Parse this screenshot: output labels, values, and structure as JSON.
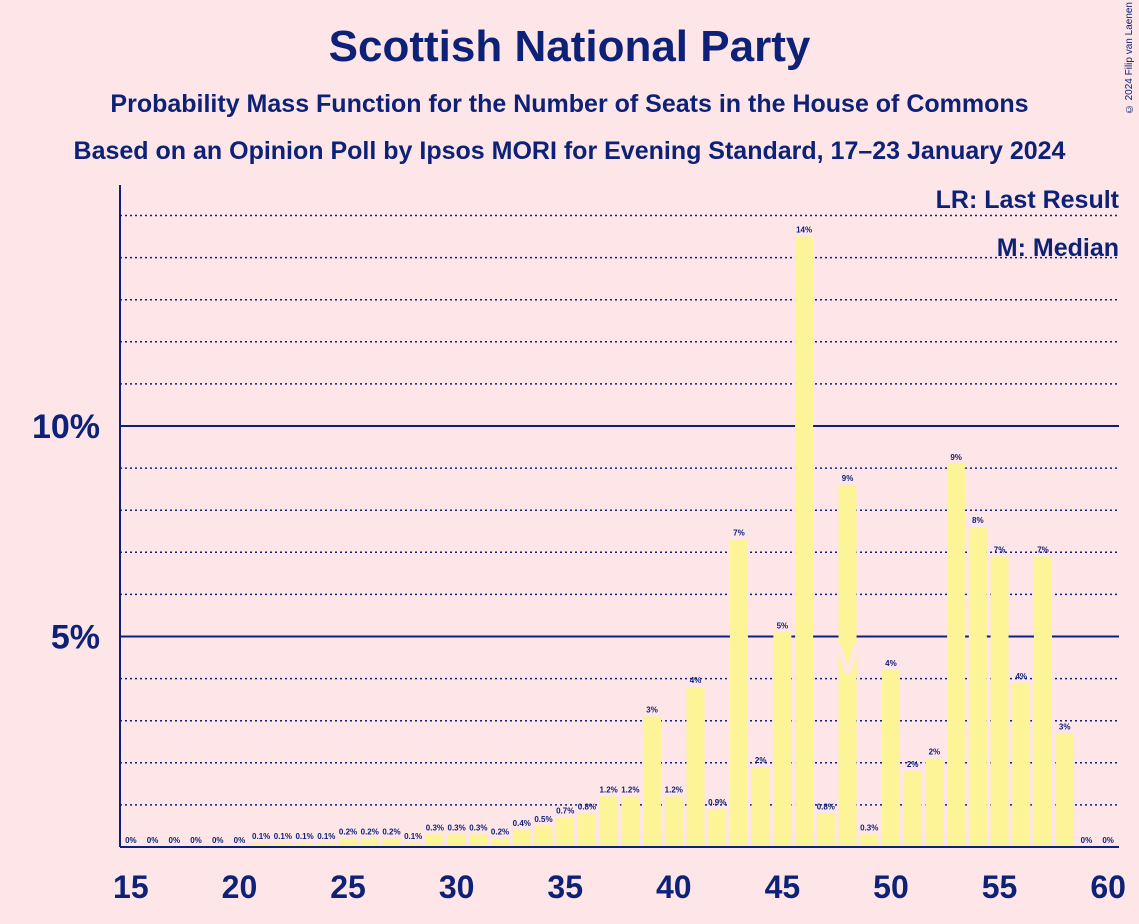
{
  "title": "Scottish National Party",
  "subtitle1": "Probability Mass Function for the Number of Seats in the House of Commons",
  "subtitle2": "Based on an Opinion Poll by Ipsos MORI for Evening Standard, 17–23 January 2024",
  "copyright": "© 2024 Filip van Laenen",
  "legend": {
    "last_result": "LR: Last Result",
    "median": "M: Median"
  },
  "colors": {
    "background": "#fde5e8",
    "bar": "#fdf497",
    "text": "#0d2277"
  },
  "chart_data": {
    "type": "bar",
    "title": "Scottish National Party",
    "xlabel": "",
    "ylabel": "",
    "x_ticks": [
      15,
      20,
      25,
      30,
      35,
      40,
      45,
      50,
      55,
      60
    ],
    "y_ticks": [
      {
        "value": 5,
        "label": "5%"
      },
      {
        "value": 10,
        "label": "10%"
      }
    ],
    "ylim": [
      0,
      15.8
    ],
    "xlim": [
      14.5,
      60.5
    ],
    "grid": true,
    "median_seat": 48,
    "median_marker": "M",
    "points": [
      {
        "x": 15,
        "y": 0,
        "label": "0%"
      },
      {
        "x": 16,
        "y": 0,
        "label": "0%"
      },
      {
        "x": 17,
        "y": 0,
        "label": "0%"
      },
      {
        "x": 18,
        "y": 0,
        "label": "0%"
      },
      {
        "x": 19,
        "y": 0,
        "label": "0%"
      },
      {
        "x": 20,
        "y": 0,
        "label": "0%"
      },
      {
        "x": 21,
        "y": 0.1,
        "label": "0.1%"
      },
      {
        "x": 22,
        "y": 0.1,
        "label": "0.1%"
      },
      {
        "x": 23,
        "y": 0.1,
        "label": "0.1%"
      },
      {
        "x": 24,
        "y": 0.1,
        "label": "0.1%"
      },
      {
        "x": 25,
        "y": 0.2,
        "label": "0.2%"
      },
      {
        "x": 26,
        "y": 0.2,
        "label": "0.2%"
      },
      {
        "x": 27,
        "y": 0.2,
        "label": "0.2%"
      },
      {
        "x": 28,
        "y": 0.1,
        "label": "0.1%"
      },
      {
        "x": 29,
        "y": 0.3,
        "label": "0.3%"
      },
      {
        "x": 30,
        "y": 0.3,
        "label": "0.3%"
      },
      {
        "x": 31,
        "y": 0.3,
        "label": "0.3%"
      },
      {
        "x": 32,
        "y": 0.2,
        "label": "0.2%"
      },
      {
        "x": 33,
        "y": 0.4,
        "label": "0.4%"
      },
      {
        "x": 34,
        "y": 0.5,
        "label": "0.5%"
      },
      {
        "x": 35,
        "y": 0.7,
        "label": "0.7%"
      },
      {
        "x": 36,
        "y": 0.8,
        "label": "0.8%"
      },
      {
        "x": 37,
        "y": 1.2,
        "label": "1.2%"
      },
      {
        "x": 38,
        "y": 1.2,
        "label": "1.2%"
      },
      {
        "x": 39,
        "y": 3.1,
        "label": "3%"
      },
      {
        "x": 40,
        "y": 1.2,
        "label": "1.2%"
      },
      {
        "x": 41,
        "y": 3.8,
        "label": "4%"
      },
      {
        "x": 42,
        "y": 0.9,
        "label": "0.9%"
      },
      {
        "x": 43,
        "y": 7.3,
        "label": "7%"
      },
      {
        "x": 44,
        "y": 1.9,
        "label": "2%"
      },
      {
        "x": 45,
        "y": 5.1,
        "label": "5%"
      },
      {
        "x": 46,
        "y": 14.5,
        "label": "14%"
      },
      {
        "x": 47,
        "y": 0.8,
        "label": "0.8%"
      },
      {
        "x": 48,
        "y": 8.6,
        "label": "9%"
      },
      {
        "x": 49,
        "y": 0.3,
        "label": "0.3%"
      },
      {
        "x": 50,
        "y": 4.2,
        "label": "4%"
      },
      {
        "x": 51,
        "y": 1.8,
        "label": "2%"
      },
      {
        "x": 52,
        "y": 2.1,
        "label": "2%"
      },
      {
        "x": 53,
        "y": 9.1,
        "label": "9%"
      },
      {
        "x": 54,
        "y": 7.6,
        "label": "8%"
      },
      {
        "x": 55,
        "y": 6.9,
        "label": "7%"
      },
      {
        "x": 56,
        "y": 3.9,
        "label": "4%"
      },
      {
        "x": 57,
        "y": 6.9,
        "label": "7%"
      },
      {
        "x": 58,
        "y": 2.7,
        "label": "3%"
      },
      {
        "x": 59,
        "y": 0,
        "label": "0%"
      },
      {
        "x": 60,
        "y": 0,
        "label": "0%"
      }
    ]
  }
}
